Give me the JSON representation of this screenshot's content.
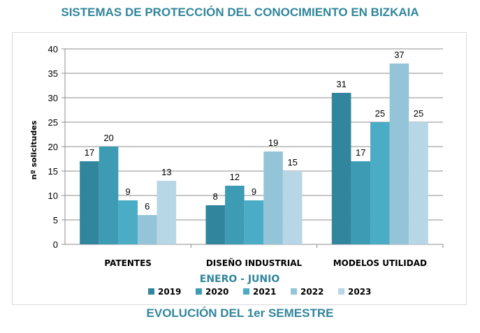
{
  "header": {
    "title": "SISTEMAS DE PROTECCIÓN DEL CONOCIMIENTO EN BIZKAIA"
  },
  "footer": {
    "title": "EVOLUCIÓN DEL 1er SEMESTRE"
  },
  "chart_data": {
    "type": "bar",
    "title": "SISTEMAS DE PROTECCIÓN DEL CONOCIMIENTO EN BIZKAIA",
    "xlabel": "ENERO - JUNIO",
    "ylabel": "nº solicitudes",
    "ylim": [
      0,
      40
    ],
    "yticks": [
      0,
      5,
      10,
      15,
      20,
      25,
      30,
      35,
      40
    ],
    "grid": true,
    "legend_position": "bottom",
    "categories": [
      "PATENTES",
      "DISEÑO INDUSTRIAL",
      "MODELOS UTILIDAD"
    ],
    "series": [
      {
        "name": "2019",
        "color": "#31859c",
        "values": [
          17,
          8,
          31
        ]
      },
      {
        "name": "2020",
        "color": "#3d9bb3",
        "values": [
          20,
          12,
          17
        ]
      },
      {
        "name": "2021",
        "color": "#4bacc6",
        "values": [
          9,
          9,
          25
        ]
      },
      {
        "name": "2022",
        "color": "#93c4d8",
        "values": [
          6,
          19,
          37
        ]
      },
      {
        "name": "2023",
        "color": "#b7d7e6",
        "values": [
          13,
          15,
          25
        ]
      }
    ]
  }
}
